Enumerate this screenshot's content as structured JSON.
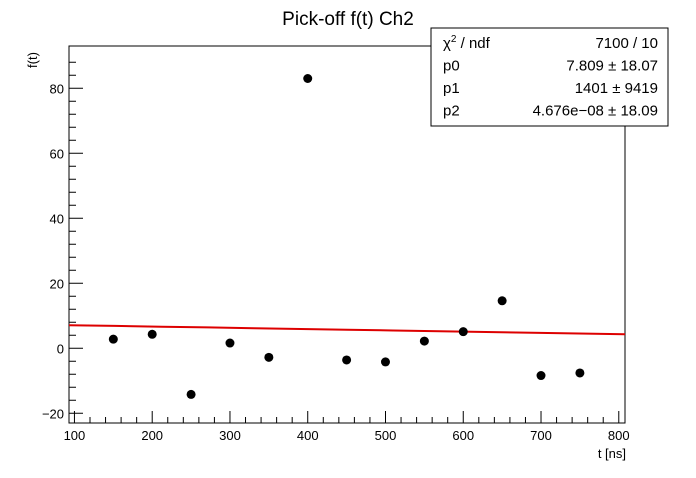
{
  "chart_data": {
    "type": "scatter",
    "title": "Pick-off f(t) Ch2",
    "xlabel": "t [ns]",
    "ylabel": "f(t)",
    "xlim": [
      93,
      808
    ],
    "ylim": [
      -23,
      93
    ],
    "x_ticks": [
      100,
      200,
      300,
      400,
      500,
      600,
      700,
      800
    ],
    "x_tick_labels": [
      "100",
      "200",
      "300",
      "400",
      "500",
      "600",
      "700",
      "800"
    ],
    "y_ticks": [
      -20,
      0,
      20,
      40,
      60,
      80
    ],
    "y_tick_labels": [
      "−20",
      "0",
      "20",
      "40",
      "60",
      "80"
    ],
    "grid": false,
    "series": [
      {
        "marker_color": "#000000",
        "points": [
          {
            "x": 150,
            "y": 2.8
          },
          {
            "x": 200,
            "y": 4.3
          },
          {
            "x": 250,
            "y": -14.2
          },
          {
            "x": 300,
            "y": 1.6
          },
          {
            "x": 350,
            "y": -2.8
          },
          {
            "x": 400,
            "y": 83.0
          },
          {
            "x": 450,
            "y": -3.6
          },
          {
            "x": 500,
            "y": -4.2
          },
          {
            "x": 550,
            "y": 2.2
          },
          {
            "x": 600,
            "y": 5.1
          },
          {
            "x": 650,
            "y": 14.6
          },
          {
            "x": 700,
            "y": -8.4
          },
          {
            "x": 750,
            "y": -7.6
          }
        ]
      }
    ],
    "fit_line": {
      "color": "#dd0000",
      "x_range": [
        93,
        808
      ],
      "y_start": 7.1,
      "y_end": 4.3
    },
    "stats_box": {
      "placement": "top-right",
      "rows": [
        {
          "label_main": "χ",
          "label_sup": "2",
          "label_rest": " / ndf",
          "value": "7100 / 10"
        },
        {
          "label_main": "p0",
          "label_sup": "",
          "label_rest": "",
          "value": "7.809 ± 18.07"
        },
        {
          "label_main": "p1",
          "label_sup": "",
          "label_rest": "",
          "value": "1401 ±  9419"
        },
        {
          "label_main": "p2",
          "label_sup": "",
          "label_rest": "",
          "value": "4.676e−08 ± 18.09"
        }
      ]
    }
  }
}
